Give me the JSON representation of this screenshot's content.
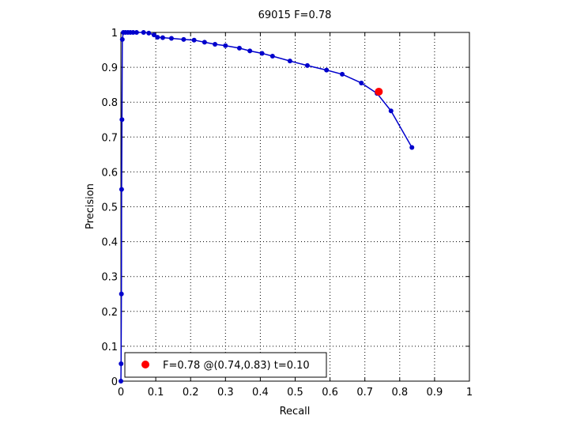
{
  "chart_data": {
    "type": "line",
    "title": "69015 F=0.78",
    "xlabel": "Recall",
    "ylabel": "Precision",
    "xlim": [
      0,
      1
    ],
    "ylim": [
      0,
      1
    ],
    "xticks": [
      "0",
      "0.1",
      "0.2",
      "0.3",
      "0.4",
      "0.5",
      "0.6",
      "0.7",
      "0.8",
      "0.9",
      "1"
    ],
    "yticks": [
      "0",
      "0.1",
      "0.2",
      "0.3",
      "0.4",
      "0.5",
      "0.6",
      "0.7",
      "0.8",
      "0.9",
      "1"
    ],
    "grid": true,
    "series": [
      {
        "color": "#0000cc",
        "x": [
          0.835,
          0.775,
          0.735,
          0.69,
          0.635,
          0.59,
          0.535,
          0.485,
          0.435,
          0.405,
          0.37,
          0.34,
          0.3,
          0.27,
          0.24,
          0.21,
          0.18,
          0.145,
          0.12,
          0.105,
          0.095,
          0.08,
          0.065,
          0.045,
          0.035,
          0.027,
          0.02,
          0.013,
          0.007,
          0.004,
          0.003,
          0.002,
          0.0015,
          0.0005,
          0.0
        ],
        "y": [
          0.67,
          0.775,
          0.825,
          0.855,
          0.88,
          0.892,
          0.905,
          0.918,
          0.932,
          0.94,
          0.947,
          0.955,
          0.962,
          0.966,
          0.972,
          0.978,
          0.98,
          0.983,
          0.985,
          0.986,
          0.993,
          0.998,
          1.0,
          1.0,
          1.0,
          1.0,
          1.0,
          1.0,
          1.0,
          0.98,
          0.75,
          0.55,
          0.25,
          0.05,
          0.0
        ]
      }
    ],
    "highlight": {
      "x": 0.74,
      "y": 0.83,
      "color": "#ff0000"
    },
    "legend": {
      "placement": "bottom-left",
      "text": "F=0.78 @(0.74,0.83) t=0.10"
    }
  }
}
